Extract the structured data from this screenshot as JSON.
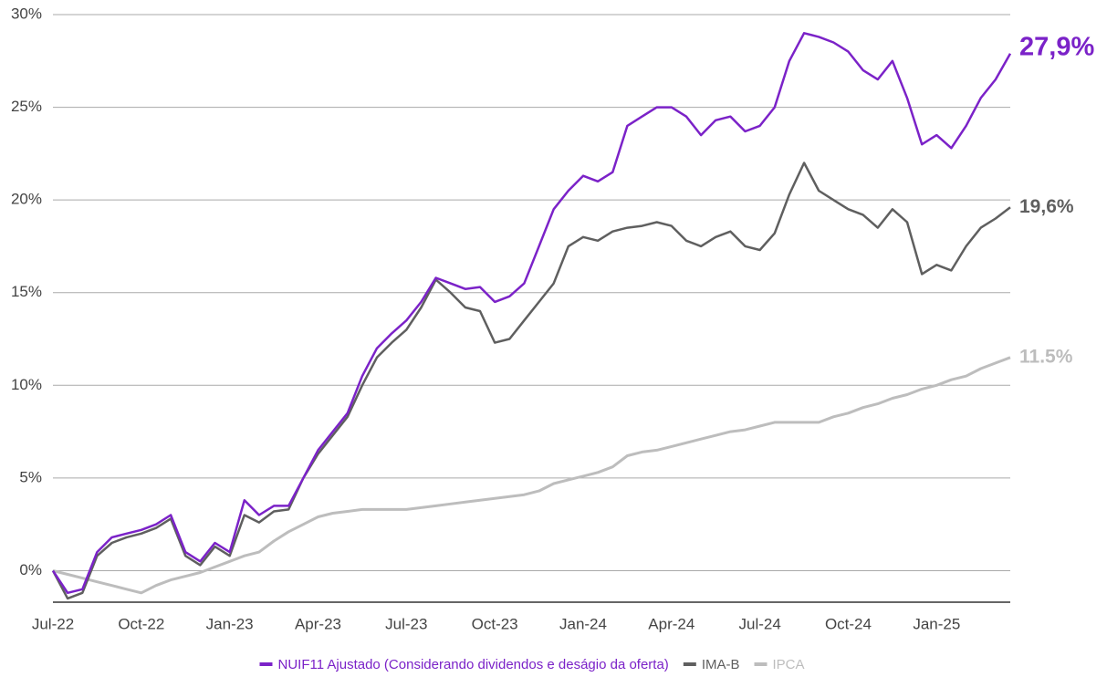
{
  "chart_data": {
    "type": "line",
    "categories": [
      "Jul-22",
      null,
      null,
      null,
      null,
      null,
      "Oct-22",
      null,
      null,
      null,
      null,
      null,
      "Jan-23",
      null,
      null,
      null,
      null,
      null,
      "Apr-23",
      null,
      null,
      null,
      null,
      null,
      "Jul-23",
      null,
      null,
      null,
      null,
      null,
      "Oct-23",
      null,
      null,
      null,
      null,
      null,
      "Jan-24",
      null,
      null,
      null,
      null,
      null,
      "Apr-24",
      null,
      null,
      null,
      null,
      null,
      "Jul-24",
      null,
      null,
      null,
      null,
      null,
      "Oct-24",
      null,
      null,
      null,
      null,
      null,
      "Jan-25",
      null,
      null,
      null,
      null,
      null
    ],
    "series": [
      {
        "name": "NUIF11 Ajustado (Considerando dividendos e deságio da oferta)",
        "color": "#7b22c8",
        "end_label": "27,9%",
        "values": [
          0,
          -1.2,
          -1.0,
          1.0,
          1.8,
          2.0,
          2.2,
          2.5,
          3.0,
          1.0,
          0.5,
          1.5,
          1.0,
          3.8,
          3.0,
          3.5,
          3.5,
          5.0,
          6.5,
          7.5,
          8.5,
          10.5,
          12.0,
          12.8,
          13.5,
          14.5,
          15.8,
          15.5,
          15.2,
          15.3,
          14.5,
          14.8,
          15.5,
          17.5,
          19.5,
          20.5,
          21.3,
          21.0,
          21.5,
          24.0,
          24.5,
          25.0,
          25.0,
          24.5,
          23.5,
          24.3,
          24.5,
          23.7,
          24.0,
          25.0,
          27.5,
          29.0,
          28.8,
          28.5,
          28.0,
          27.0,
          26.5,
          27.5,
          25.5,
          23.0,
          23.5,
          22.8,
          24.0,
          25.5,
          26.5,
          27.9
        ]
      },
      {
        "name": "IMA-B",
        "color": "#5f5f5f",
        "end_label": "19,6%",
        "values": [
          0,
          -1.5,
          -1.2,
          0.8,
          1.5,
          1.8,
          2.0,
          2.3,
          2.8,
          0.8,
          0.3,
          1.3,
          0.8,
          3.0,
          2.6,
          3.2,
          3.3,
          5.0,
          6.3,
          7.3,
          8.3,
          10.0,
          11.5,
          12.3,
          13.0,
          14.2,
          15.7,
          15.0,
          14.2,
          14.0,
          12.3,
          12.5,
          13.5,
          14.5,
          15.5,
          17.5,
          18.0,
          17.8,
          18.3,
          18.5,
          18.6,
          18.8,
          18.6,
          17.8,
          17.5,
          18.0,
          18.3,
          17.5,
          17.3,
          18.2,
          20.3,
          22.0,
          20.5,
          20.0,
          19.5,
          19.2,
          18.5,
          19.5,
          18.8,
          16.0,
          16.5,
          16.2,
          17.5,
          18.5,
          19.0,
          19.6
        ]
      },
      {
        "name": "IPCA",
        "color": "#bdbdbd",
        "end_label": "11.5%",
        "values": [
          0,
          -0.2,
          -0.4,
          -0.6,
          -0.8,
          -1.0,
          -1.2,
          -0.8,
          -0.5,
          -0.3,
          -0.1,
          0.2,
          0.5,
          0.8,
          1.0,
          1.6,
          2.1,
          2.5,
          2.9,
          3.1,
          3.2,
          3.3,
          3.3,
          3.3,
          3.3,
          3.4,
          3.5,
          3.6,
          3.7,
          3.8,
          3.9,
          4.0,
          4.1,
          4.3,
          4.7,
          4.9,
          5.1,
          5.3,
          5.6,
          6.2,
          6.4,
          6.5,
          6.7,
          6.9,
          7.1,
          7.3,
          7.5,
          7.6,
          7.8,
          8.0,
          8.0,
          8.0,
          8.0,
          8.3,
          8.5,
          8.8,
          9.0,
          9.3,
          9.5,
          9.8,
          10.0,
          10.3,
          10.5,
          10.9,
          11.2,
          11.5
        ]
      }
    ],
    "ylim": [
      -1.7,
      30
    ],
    "yticks": [
      {
        "value": 0,
        "label": "0%"
      },
      {
        "value": 5,
        "label": "5%"
      },
      {
        "value": 10,
        "label": "10%"
      },
      {
        "value": 15,
        "label": "15%"
      },
      {
        "value": 20,
        "label": "20%"
      },
      {
        "value": 25,
        "label": "25%"
      },
      {
        "value": 30,
        "label": "30%"
      }
    ],
    "grid": true,
    "legend": "bottom"
  }
}
